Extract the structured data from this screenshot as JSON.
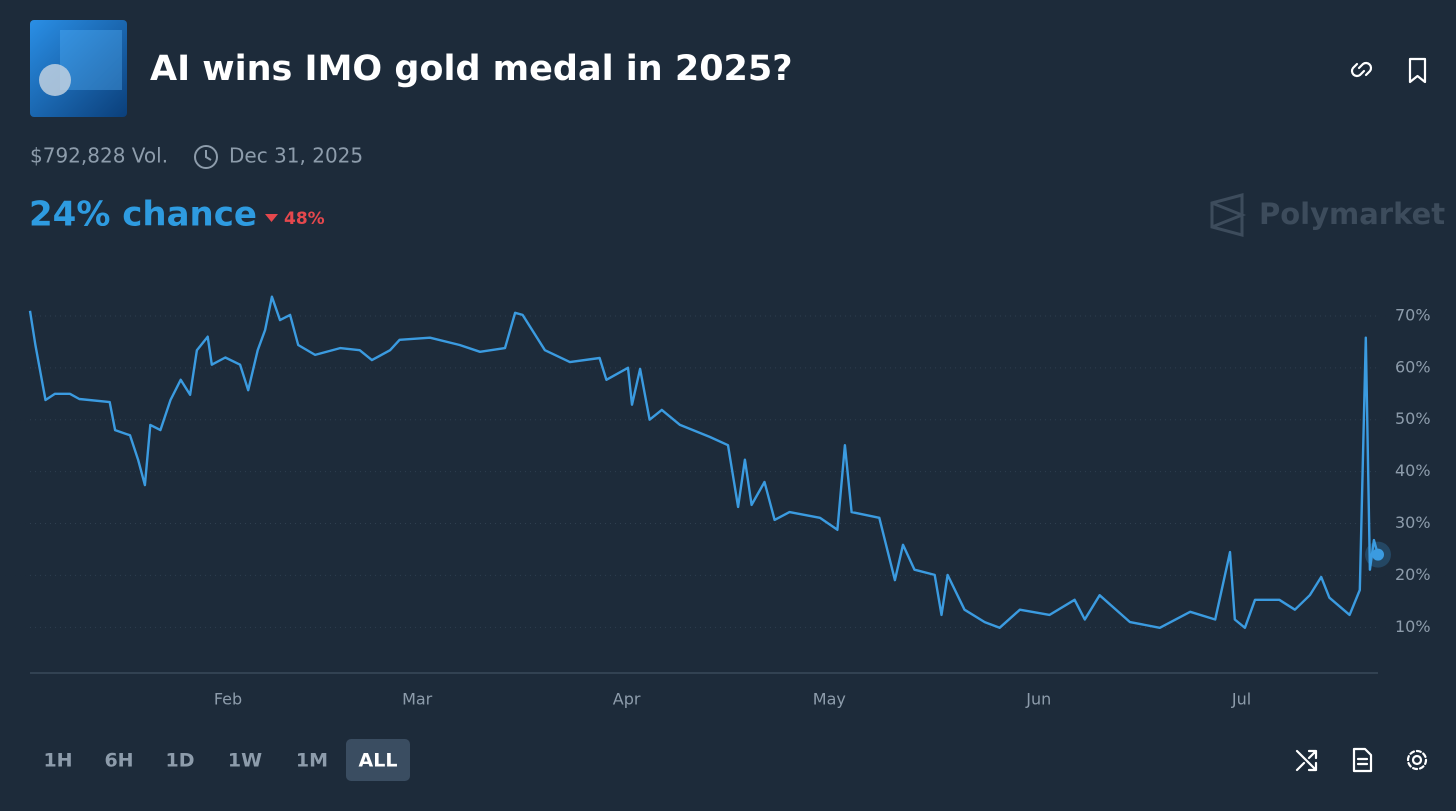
{
  "header": {
    "title": "AI wins IMO gold medal in 2025?",
    "volume": "$792,828 Vol.",
    "end_date": "Dec 31, 2025",
    "chance": "24% chance",
    "change": "48%",
    "brand": "Polymarket"
  },
  "time_ranges": [
    "1H",
    "6H",
    "1D",
    "1W",
    "1M",
    "ALL"
  ],
  "selected_range_index": 5,
  "chart_data": {
    "type": "line",
    "color": "#3b9be0",
    "x": [
      2.7,
      3.5,
      5,
      6.4,
      8.6,
      10,
      14.5,
      15.3,
      17.5,
      18.7,
      19.7,
      20.5,
      22,
      23.5,
      25,
      26.4,
      27.4,
      29,
      29.6,
      31.6,
      33.8,
      35,
      36.4,
      37.5,
      38.5,
      39.7,
      41.2,
      42.4,
      44.9,
      48.6,
      51.5,
      53.3,
      56,
      57.4,
      61.9,
      66.3,
      69.3,
      73,
      74.5,
      75.6,
      78.9,
      82.6,
      87,
      88,
      91.2,
      91.8,
      93,
      94.4,
      96.2,
      98.9,
      103.3,
      106,
      107.5,
      108.5,
      109.5,
      111.4,
      112.9,
      115.1,
      119.6,
      122.2,
      123.3,
      124.3,
      128.4,
      130.7,
      131.9,
      133.6,
      136.6,
      137.6,
      138.5,
      141,
      144,
      146.2,
      149.2,
      153.6,
      157.3,
      158.8,
      161,
      165.5,
      169.9,
      174.4,
      178.1,
      180.3,
      181,
      182.5,
      184,
      187.6,
      189.9,
      192.1,
      193.8,
      195,
      198,
      199.5,
      200.4,
      201,
      201.6,
      202.2
    ],
    "values": [
      71,
      64.4,
      53.8,
      55,
      55,
      54,
      53.4,
      48,
      47,
      42.3,
      37.4,
      49,
      48,
      53.8,
      57.7,
      54.8,
      63.4,
      66,
      60.6,
      62,
      60.6,
      55.7,
      63.4,
      67.3,
      73.7,
      69.2,
      70.2,
      64.4,
      62.5,
      63.8,
      63.4,
      61.5,
      63.4,
      65.4,
      65.8,
      64.4,
      63.1,
      63.8,
      70.6,
      70.2,
      63.4,
      61.1,
      61.9,
      57.7,
      60,
      52.9,
      59.8,
      50,
      51.9,
      49,
      46.7,
      45.1,
      33.2,
      42.3,
      33.6,
      38,
      30.7,
      32.2,
      31.1,
      28.8,
      45.1,
      32.2,
      31.1,
      19.1,
      25.9,
      21.1,
      20.1,
      12.4,
      20.1,
      13.4,
      11,
      9.9,
      13.4,
      12.4,
      15.3,
      11.5,
      16.2,
      11,
      9.9,
      13,
      11.5,
      24.5,
      11.5,
      9.9,
      15.3,
      15.3,
      13.4,
      16.2,
      19.7,
      15.7,
      12.4,
      17.2,
      65.8,
      21.1,
      26.8,
      24
    ],
    "xlim": [
      2.7,
      202.2
    ],
    "xticks": [
      {
        "value": 32,
        "label": "Feb"
      },
      {
        "value": 60,
        "label": "Mar"
      },
      {
        "value": 91,
        "label": "Apr"
      },
      {
        "value": 121,
        "label": "May"
      },
      {
        "value": 152,
        "label": "Jun"
      },
      {
        "value": 182,
        "label": "Jul"
      }
    ],
    "ylim": [
      1.2,
      75
    ],
    "yticks": [
      {
        "value": 10,
        "label": "10%"
      },
      {
        "value": 20,
        "label": "20%"
      },
      {
        "value": 30,
        "label": "30%"
      },
      {
        "value": 40,
        "label": "40%"
      },
      {
        "value": 50,
        "label": "50%"
      },
      {
        "value": 60,
        "label": "60%"
      },
      {
        "value": 70,
        "label": "70%"
      }
    ],
    "grid": true
  }
}
